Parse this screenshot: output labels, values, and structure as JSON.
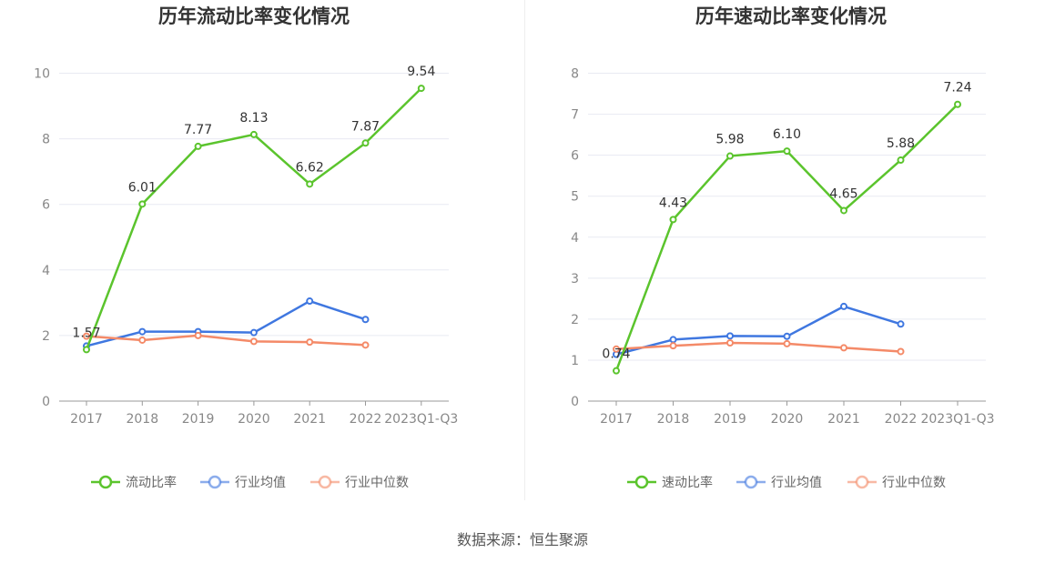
{
  "colors": {
    "main": "#5bc42d",
    "avg": "#3f77e0",
    "median": "#f48a68",
    "grid": "#e8eaf2",
    "axis": "#999999"
  },
  "source_text": "数据来源：恒生聚源",
  "chart_data": [
    {
      "type": "line",
      "title": "历年流动比率变化情况",
      "categories": [
        "2017",
        "2018",
        "2019",
        "2020",
        "2021",
        "2022",
        "2023Q1-Q3"
      ],
      "ylim": [
        0,
        10
      ],
      "yticks": [
        0,
        2,
        4,
        6,
        8,
        10
      ],
      "grid": true,
      "legend_position": "bottom",
      "series": [
        {
          "name": "流动比率",
          "values": [
            1.57,
            6.01,
            7.77,
            8.13,
            6.62,
            7.87,
            9.54
          ],
          "labels": [
            "1.57",
            "6.01",
            "7.77",
            "8.13",
            "6.62",
            "7.87",
            "9.54"
          ]
        },
        {
          "name": "行业均值",
          "values": [
            1.68,
            2.12,
            2.12,
            2.09,
            3.05,
            2.49,
            null
          ]
        },
        {
          "name": "行业中位数",
          "values": [
            1.98,
            1.86,
            2.0,
            1.82,
            1.8,
            1.71,
            null
          ]
        }
      ]
    },
    {
      "type": "line",
      "title": "历年速动比率变化情况",
      "categories": [
        "2017",
        "2018",
        "2019",
        "2020",
        "2021",
        "2022",
        "2023Q1-Q3"
      ],
      "ylim": [
        0,
        8
      ],
      "yticks": [
        0,
        1,
        2,
        3,
        4,
        5,
        6,
        7,
        8
      ],
      "grid": true,
      "legend_position": "bottom",
      "series": [
        {
          "name": "速动比率",
          "values": [
            0.74,
            4.43,
            5.98,
            6.1,
            4.65,
            5.88,
            7.24
          ],
          "labels": [
            "0.74",
            "4.43",
            "5.98",
            "6.10",
            "4.65",
            "5.88",
            "7.24"
          ]
        },
        {
          "name": "行业均值",
          "values": [
            1.14,
            1.5,
            1.59,
            1.58,
            2.31,
            1.88,
            null
          ]
        },
        {
          "name": "行业中位数",
          "values": [
            1.27,
            1.35,
            1.42,
            1.4,
            1.3,
            1.21,
            null
          ]
        }
      ]
    }
  ]
}
